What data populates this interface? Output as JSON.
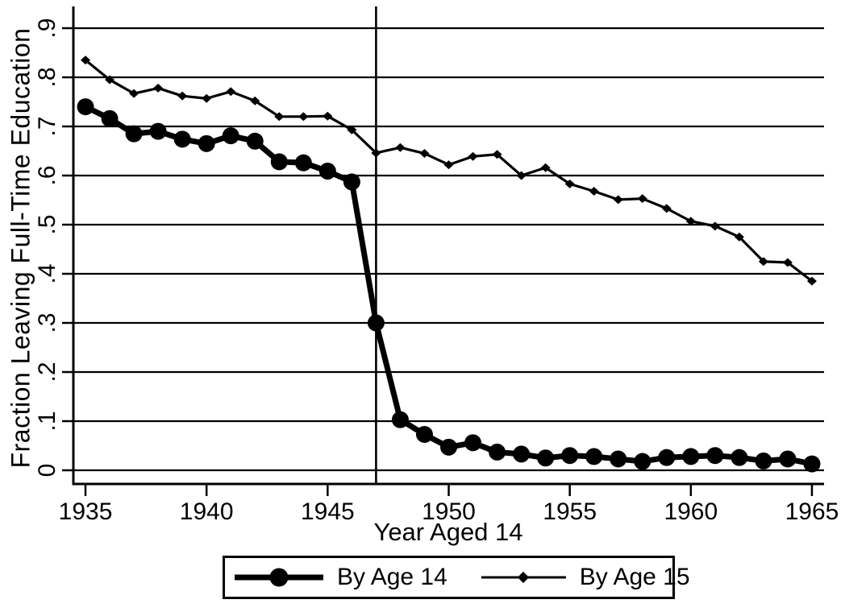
{
  "chart_data": {
    "type": "line",
    "title": "",
    "xlabel": "Year Aged 14",
    "ylabel": "Fraction Leaving Full-Time Education",
    "xlim": [
      1934.5,
      1965.5
    ],
    "ylim": [
      0,
      0.9
    ],
    "grid": "horizontal",
    "legend_position": "bottom",
    "line_color": "#000000",
    "reference_line_x": 1947,
    "x_ticks": [
      {
        "label": "1935",
        "value": 1935
      },
      {
        "label": "1940",
        "value": 1940
      },
      {
        "label": "1945",
        "value": 1945
      },
      {
        "label": "1950",
        "value": 1950
      },
      {
        "label": "1955",
        "value": 1955
      },
      {
        "label": "1960",
        "value": 1960
      },
      {
        "label": "1965",
        "value": 1965
      }
    ],
    "y_ticks": [
      {
        "label": "0",
        "value": 0.0
      },
      {
        "label": ".1",
        "value": 0.1
      },
      {
        "label": ".2",
        "value": 0.2
      },
      {
        "label": ".3",
        "value": 0.3
      },
      {
        "label": ".4",
        "value": 0.4
      },
      {
        "label": ".5",
        "value": 0.5
      },
      {
        "label": ".6",
        "value": 0.6
      },
      {
        "label": ".7",
        "value": 0.7
      },
      {
        "label": ".8",
        "value": 0.8
      },
      {
        "label": ".9",
        "value": 0.9
      }
    ],
    "x": [
      1935,
      1936,
      1937,
      1938,
      1939,
      1940,
      1941,
      1942,
      1943,
      1944,
      1945,
      1946,
      1947,
      1948,
      1949,
      1950,
      1951,
      1952,
      1953,
      1954,
      1955,
      1956,
      1957,
      1958,
      1959,
      1960,
      1961,
      1962,
      1963,
      1964,
      1965
    ],
    "series": [
      {
        "name": "By Age 14",
        "marker": "circle",
        "line_style": "thick",
        "values": [
          0.74,
          0.716,
          0.685,
          0.69,
          0.674,
          0.665,
          0.681,
          0.67,
          0.628,
          0.626,
          0.609,
          0.587,
          0.3,
          0.103,
          0.073,
          0.047,
          0.056,
          0.037,
          0.033,
          0.025,
          0.03,
          0.028,
          0.023,
          0.018,
          0.026,
          0.028,
          0.03,
          0.026,
          0.019,
          0.023,
          0.013
        ]
      },
      {
        "name": "By Age 15",
        "marker": "diamond",
        "line_style": "thin",
        "values": [
          0.835,
          0.795,
          0.767,
          0.778,
          0.762,
          0.757,
          0.771,
          0.752,
          0.72,
          0.72,
          0.721,
          0.693,
          0.646,
          0.657,
          0.645,
          0.622,
          0.639,
          0.643,
          0.6,
          0.616,
          0.583,
          0.568,
          0.551,
          0.553,
          0.533,
          0.507,
          0.497,
          0.475,
          0.425,
          0.423,
          0.385
        ]
      }
    ]
  }
}
